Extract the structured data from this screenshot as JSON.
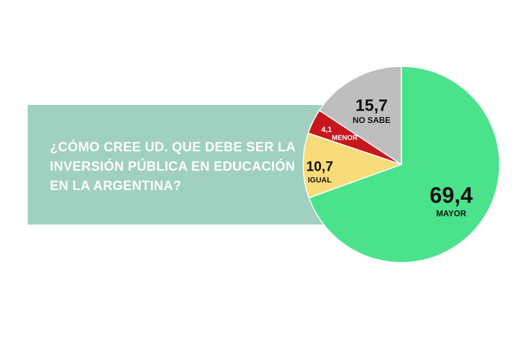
{
  "chart_data": {
    "type": "pie",
    "title": "¿CÓMO CREE UD. QUE DEBE SER LA INVERSIÓN PÚBLICA EN EDUCACIÓN EN LA ARGENTINA?",
    "categories": [
      "MAYOR",
      "IGUAL",
      "MENOR",
      "NO SABE"
    ],
    "values": [
      69.4,
      10.7,
      4.1,
      15.7
    ],
    "value_labels": [
      "69,4",
      "10,7",
      "4,1",
      "15,7"
    ],
    "colors": [
      "#4be28c",
      "#f9dc7a",
      "#c8161e",
      "#bebebe"
    ]
  }
}
